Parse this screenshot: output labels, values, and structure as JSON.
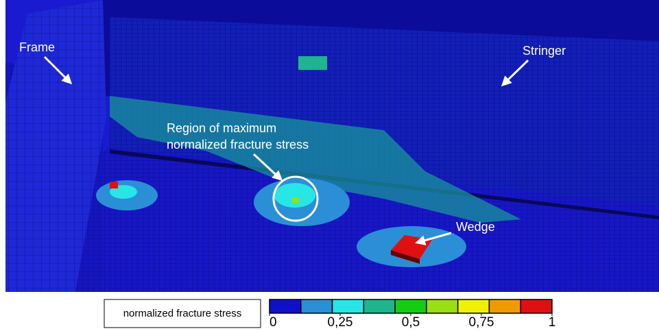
{
  "annotations": {
    "frame": "Frame",
    "stringer": "Stringer",
    "region": [
      "Region of maximum",
      "normalized fracture stress"
    ],
    "wedge": "Wedge"
  },
  "colorbar": {
    "title": "normalized fracture stress",
    "lim": [
      0,
      1
    ],
    "ticks": [
      0,
      {
        "value": 0.25,
        "label": "0,25"
      },
      {
        "value": 0.5,
        "label": "0,5"
      },
      {
        "value": 0.75,
        "label": "0,75"
      },
      1
    ],
    "colors": [
      "#1010c8",
      "#2a8fd6",
      "#28e6e6",
      "#1fb48e",
      "#14cc14",
      "#9ade14",
      "#f0f000",
      "#f09a00",
      "#e01010"
    ]
  }
}
